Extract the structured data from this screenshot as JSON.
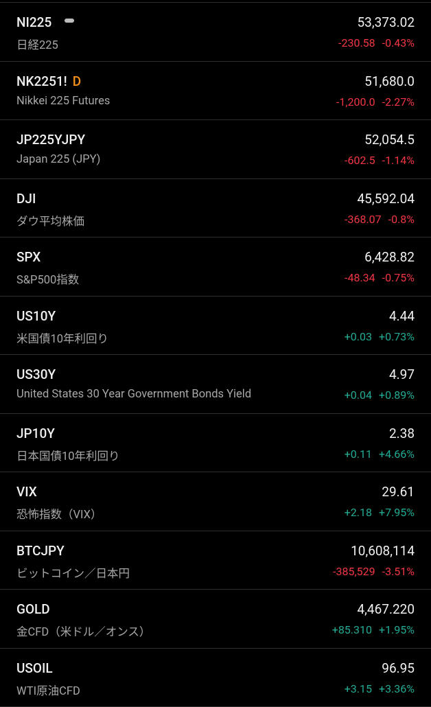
{
  "watchlist": {
    "rows": [
      {
        "symbol": "NI225",
        "name": "日経225",
        "price": "53,373.02",
        "change": "-230.58",
        "change_pct": "-0.43%"
      },
      {
        "symbol": "NK2251!",
        "badge": "D",
        "name": "Nikkei 225 Futures",
        "price": "51,680.0",
        "change": "-1,200.0",
        "change_pct": "-2.27%"
      },
      {
        "symbol": "JP225YJPY",
        "name": "Japan 225 (JPY)",
        "price": "52,054.5",
        "change": "-602.5",
        "change_pct": "-1.14%"
      },
      {
        "symbol": "DJI",
        "name": "ダウ平均株価",
        "price": "45,592.04",
        "change": "-368.07",
        "change_pct": "-0.8%"
      },
      {
        "symbol": "SPX",
        "name": "S&P500指数",
        "price": "6,428.82",
        "change": "-48.34",
        "change_pct": "-0.75%"
      },
      {
        "symbol": "US10Y",
        "name": "米国債10年利回り",
        "price": "4.44",
        "change": "+0.03",
        "change_pct": "+0.73%"
      },
      {
        "symbol": "US30Y",
        "name": "United States 30 Year Government Bonds Yield",
        "price": "4.97",
        "change": "+0.04",
        "change_pct": "+0.89%"
      },
      {
        "symbol": "JP10Y",
        "name": "日本国債10年利回り",
        "price": "2.38",
        "change": "+0.11",
        "change_pct": "+4.66%"
      },
      {
        "symbol": "VIX",
        "name": "恐怖指数（VIX）",
        "price": "29.61",
        "change": "+2.18",
        "change_pct": "+7.95%"
      },
      {
        "symbol": "BTCJPY",
        "name": "ビットコイン／日本円",
        "price": "10,608,114",
        "change": "-385,529",
        "change_pct": "-3.51%"
      },
      {
        "symbol": "GOLD",
        "name": "金CFD（米ドル／オンス）",
        "price": "4,467.220",
        "change": "+85.310",
        "change_pct": "+1.95%"
      },
      {
        "symbol": "USOIL",
        "name": "WTI原油CFD",
        "price": "96.95",
        "change": "+3.15",
        "change_pct": "+3.36%"
      }
    ]
  }
}
